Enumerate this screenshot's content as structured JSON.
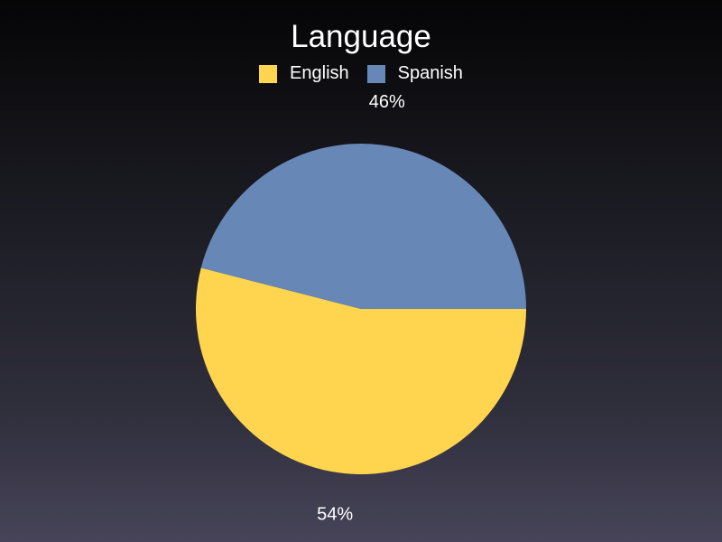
{
  "chart_data": {
    "type": "pie",
    "title": "Language",
    "legend_position": "top",
    "slices": [
      {
        "label": "English",
        "value": 54,
        "display": "54%",
        "color": "#ffd54f"
      },
      {
        "label": "Spanish",
        "value": 46,
        "display": "46%",
        "color": "#6787b7"
      }
    ]
  }
}
